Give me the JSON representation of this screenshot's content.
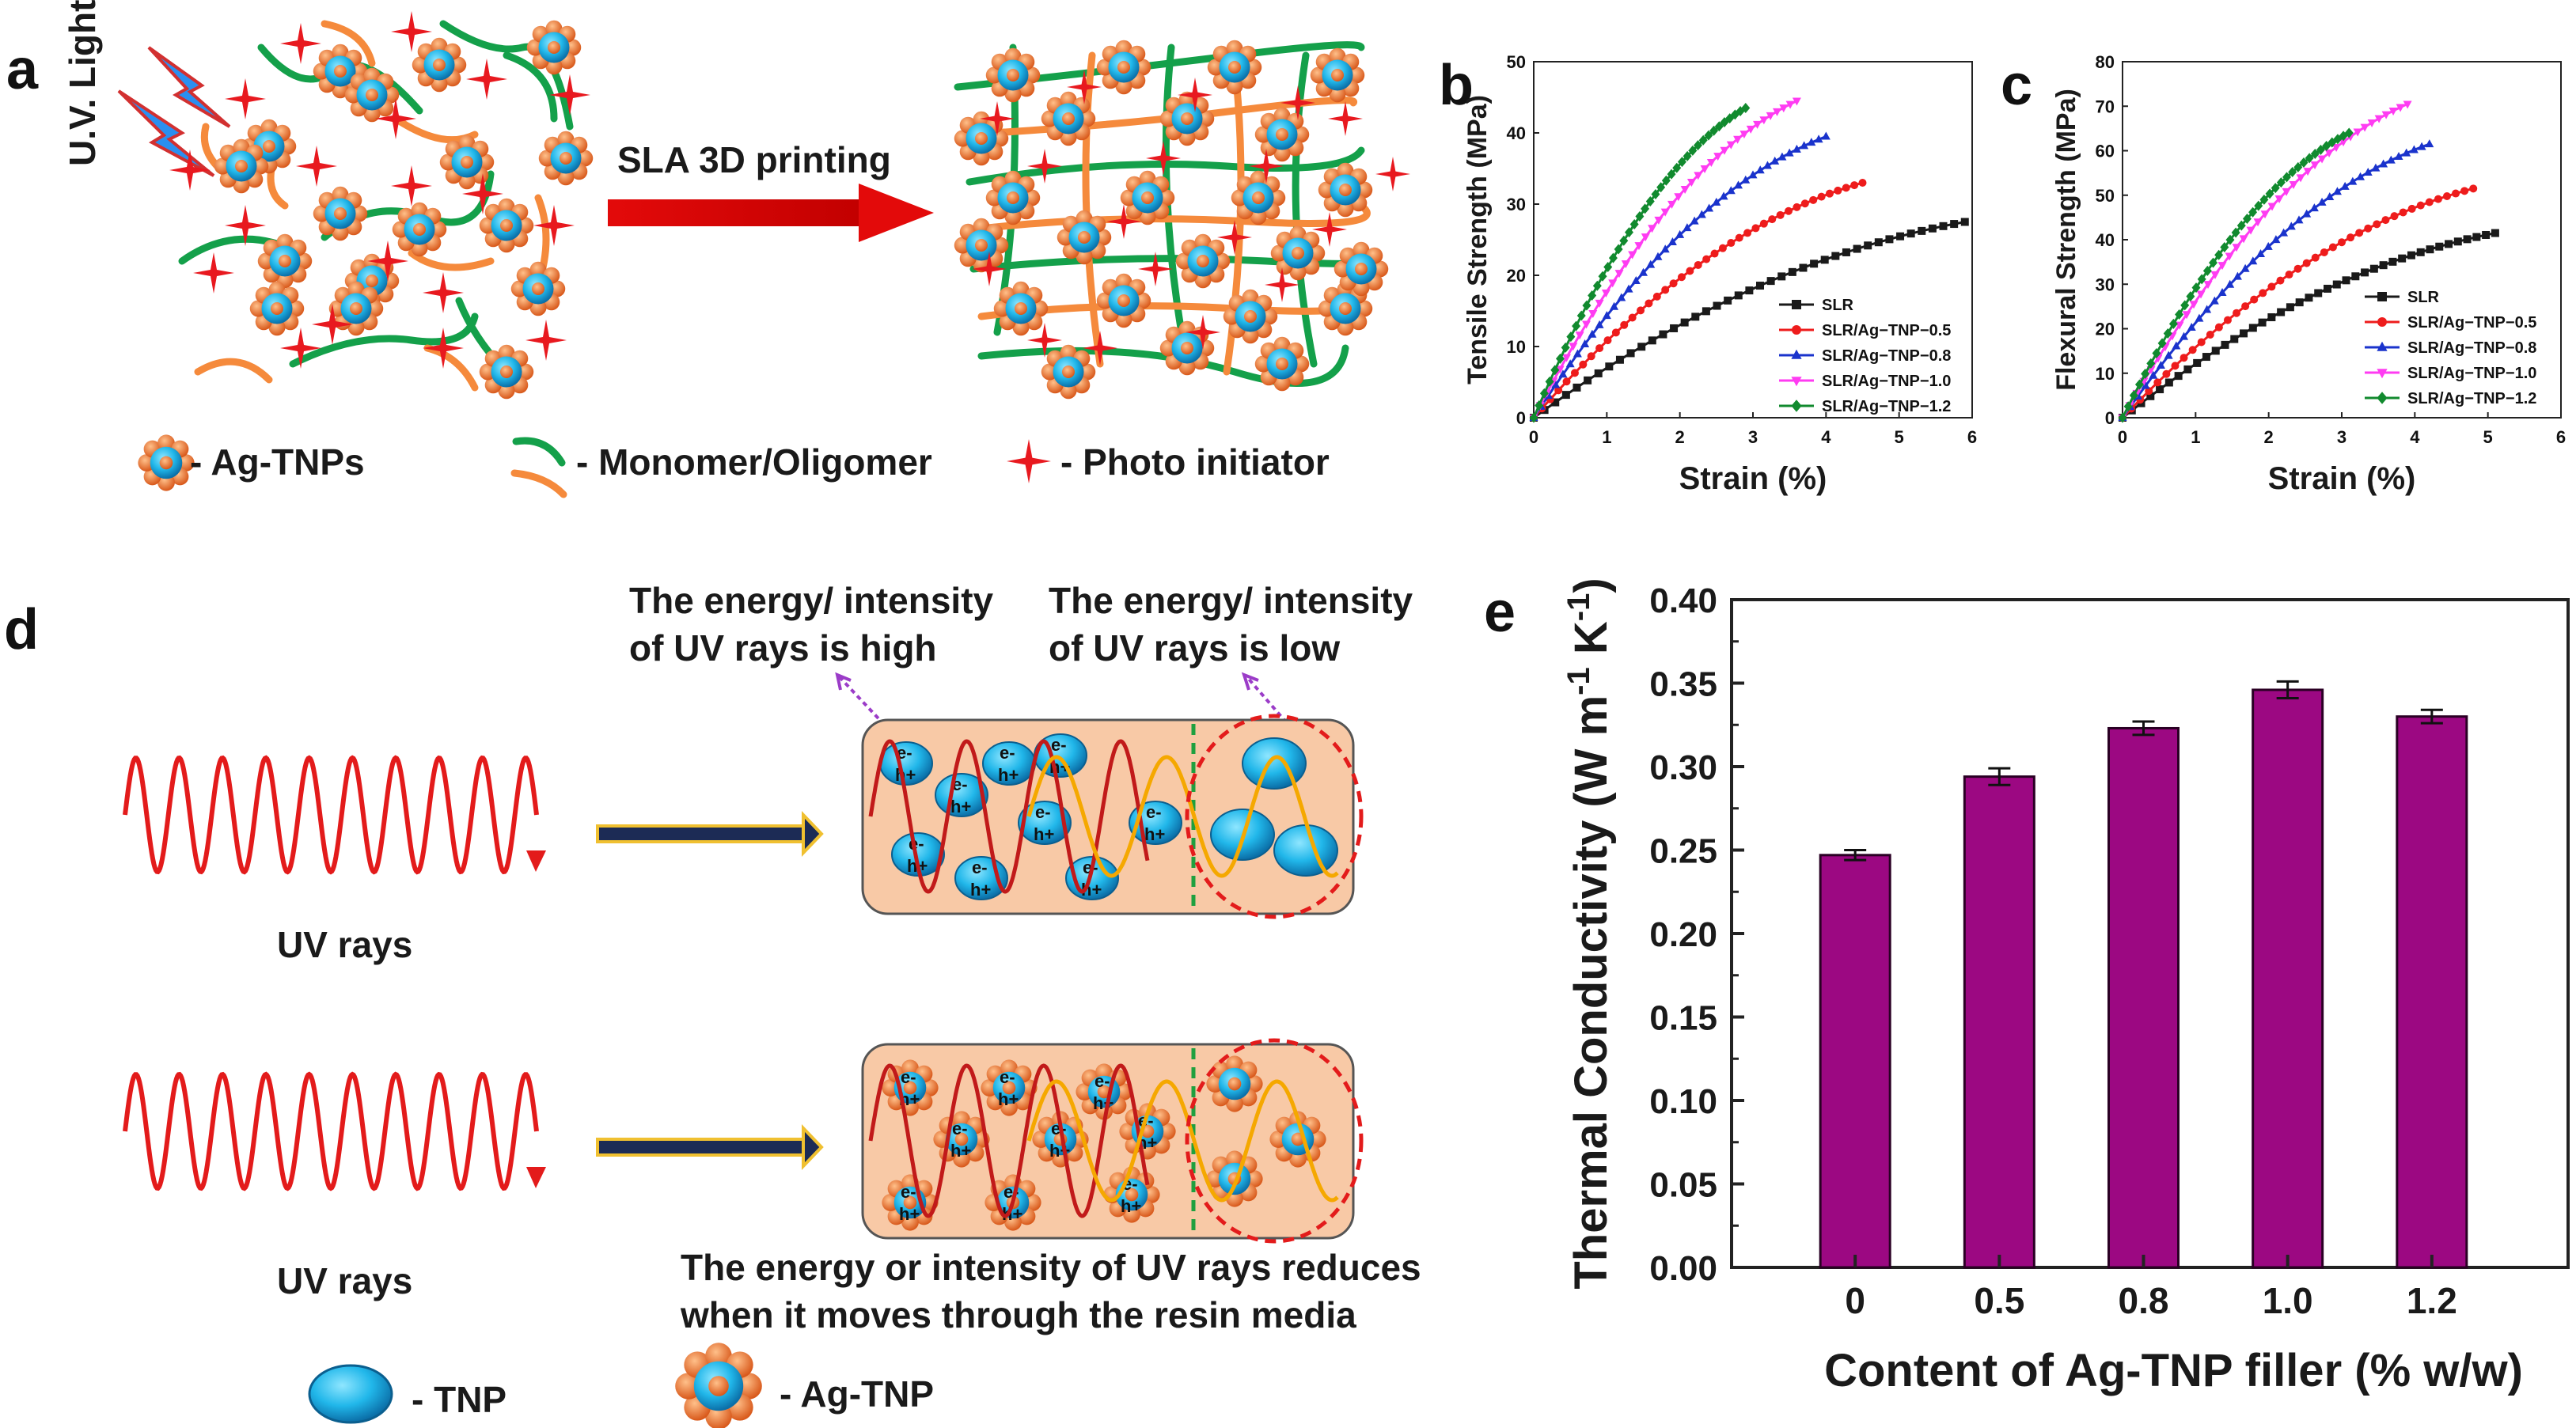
{
  "panel_labels": {
    "a": "a",
    "b": "b",
    "c": "c",
    "d": "d",
    "e": "e"
  },
  "colors": {
    "slr": "#1a1a1a",
    "s05": "#ee1c1c",
    "s08": "#1a33cc",
    "s10": "#ff3cf2",
    "s12": "#118a2e",
    "bar": "#9c0882",
    "green": "#14a04a",
    "orange": "#f58a3c",
    "red": "#e31b1b",
    "blue": "#1a9bd8"
  },
  "panel_a": {
    "uv_label": "U.V. Light",
    "arrow_label": "SLA 3D printing",
    "legend_agtnps": "- Ag-TNPs",
    "legend_monomer": "- Monomer/Oligomer",
    "legend_photo": "- Photo initiator"
  },
  "panel_d": {
    "note_high": [
      "The energy/ intensity",
      "of UV rays is high"
    ],
    "note_low": [
      "The energy/ intensity",
      "of UV rays is low"
    ],
    "uv_rays_top": "UV rays",
    "uv_rays_bottom": "UV rays",
    "caption": [
      "The energy or intensity of UV rays reduces",
      "when it moves through the resin media"
    ],
    "legend_tnp": "- TNP",
    "legend_agtnp": "- Ag-TNP",
    "electron": "e-",
    "hole": "h+"
  },
  "chart_data": [
    {
      "type": "line",
      "panel": "b",
      "xlabel": "Strain (%)",
      "ylabel": "Tensile Strength (MPa)",
      "xlim": [
        0,
        6
      ],
      "ylim": [
        0,
        50
      ],
      "xticks": [
        "0",
        "1",
        "2",
        "3",
        "4",
        "5",
        "6"
      ],
      "yticks": [
        "0",
        "10",
        "20",
        "30",
        "40",
        "50"
      ],
      "legend_position": "bottom-right",
      "series": [
        {
          "name": "SLR",
          "color_key": "slr",
          "marker": "square",
          "end_strain": 5.9,
          "end_stress": 27.5
        },
        {
          "name": "SLR/Ag−TNP−0.5",
          "color_key": "s05",
          "marker": "circle",
          "end_strain": 4.5,
          "end_stress": 33
        },
        {
          "name": "SLR/Ag−TNP−0.8",
          "color_key": "s08",
          "marker": "triangle-up",
          "end_strain": 4.0,
          "end_stress": 39.5
        },
        {
          "name": "SLR/Ag−TNP−1.0",
          "color_key": "s10",
          "marker": "triangle-down",
          "end_strain": 3.6,
          "end_stress": 44.5
        },
        {
          "name": "SLR/Ag−TNP−1.2",
          "color_key": "s12",
          "marker": "diamond",
          "end_strain": 2.9,
          "end_stress": 43.5
        }
      ]
    },
    {
      "type": "line",
      "panel": "c",
      "xlabel": "Strain (%)",
      "ylabel": "Flexural Strength (MPa)",
      "xlim": [
        0,
        6
      ],
      "ylim": [
        0,
        80
      ],
      "xticks": [
        "0",
        "1",
        "2",
        "3",
        "4",
        "5",
        "6"
      ],
      "yticks": [
        "0",
        "10",
        "20",
        "30",
        "40",
        "50",
        "60",
        "70",
        "80"
      ],
      "legend_position": "bottom-right",
      "series": [
        {
          "name": "SLR",
          "color_key": "slr",
          "marker": "square",
          "end_strain": 5.1,
          "end_stress": 41.5
        },
        {
          "name": "SLR/Ag−TNP−0.5",
          "color_key": "s05",
          "marker": "circle",
          "end_strain": 4.8,
          "end_stress": 51.5
        },
        {
          "name": "SLR/Ag−TNP−0.8",
          "color_key": "s08",
          "marker": "triangle-up",
          "end_strain": 4.2,
          "end_stress": 61.5
        },
        {
          "name": "SLR/Ag−TNP−1.0",
          "color_key": "s10",
          "marker": "triangle-down",
          "end_strain": 3.9,
          "end_stress": 70.5
        },
        {
          "name": "SLR/Ag−TNP−1.2",
          "color_key": "s12",
          "marker": "diamond",
          "end_strain": 3.1,
          "end_stress": 64
        }
      ]
    },
    {
      "type": "bar",
      "panel": "e",
      "xlabel": "Content of Ag-TNP filler (% w/w)",
      "ylabel_main": "Thermal Conductivity (W m",
      "ylabel_sup1": "-1",
      "ylabel_mid": " K",
      "ylabel_sup2": "-1",
      "ylabel_end": ")",
      "ylim": [
        0,
        0.4
      ],
      "yticks": [
        "0.00",
        "0.05",
        "0.10",
        "0.15",
        "0.20",
        "0.25",
        "0.30",
        "0.35",
        "0.40"
      ],
      "categories": [
        "0",
        "0.5",
        "0.8",
        "1.0",
        "1.2"
      ],
      "values": [
        0.247,
        0.294,
        0.323,
        0.346,
        0.33
      ],
      "errors": [
        0.003,
        0.005,
        0.004,
        0.005,
        0.004
      ]
    }
  ]
}
